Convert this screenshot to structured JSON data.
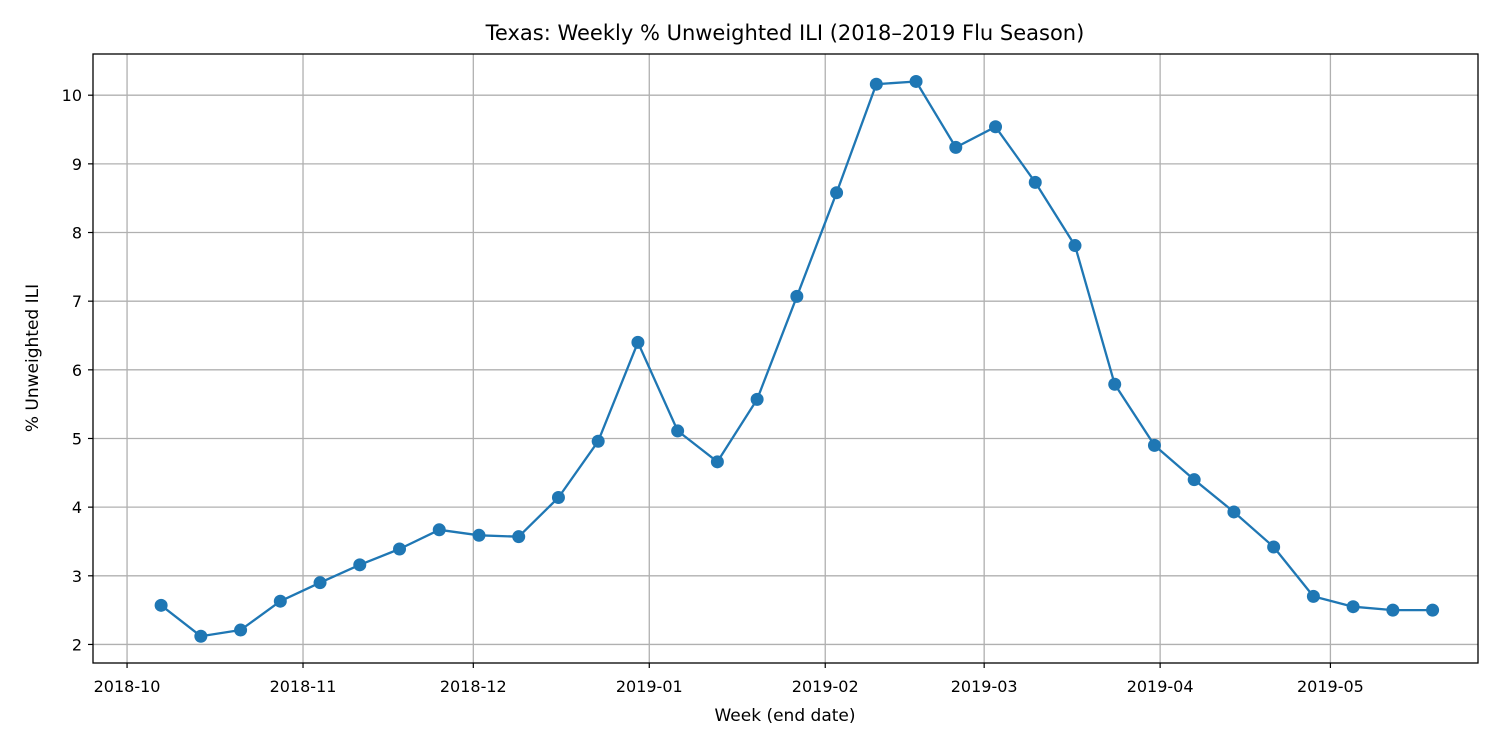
{
  "chart_data": {
    "type": "line",
    "title": "Texas: Weekly % Unweighted ILI (2018–2019 Flu Season)",
    "xlabel": "Week (end date)",
    "ylabel": "% Unweighted ILI",
    "grid": true,
    "color": "#1f77b4",
    "x_ticks": [
      "2018-10",
      "2018-11",
      "2018-12",
      "2019-01",
      "2019-02",
      "2019-03",
      "2019-04",
      "2019-05"
    ],
    "y_ticks": [
      2,
      3,
      4,
      5,
      6,
      7,
      8,
      9,
      10
    ],
    "xlim": [
      "2018-09-25",
      "2019-05-27"
    ],
    "ylim": [
      1.73,
      10.6
    ],
    "x": [
      "2018-10-07",
      "2018-10-14",
      "2018-10-21",
      "2018-10-28",
      "2018-11-04",
      "2018-11-11",
      "2018-11-18",
      "2018-11-25",
      "2018-12-02",
      "2018-12-09",
      "2018-12-16",
      "2018-12-23",
      "2018-12-30",
      "2019-01-06",
      "2019-01-13",
      "2019-01-20",
      "2019-01-27",
      "2019-02-03",
      "2019-02-10",
      "2019-02-17",
      "2019-02-24",
      "2019-03-03",
      "2019-03-10",
      "2019-03-17",
      "2019-03-24",
      "2019-03-31",
      "2019-04-07",
      "2019-04-14",
      "2019-04-21",
      "2019-04-28",
      "2019-05-05",
      "2019-05-12",
      "2019-05-19"
    ],
    "values": [
      2.57,
      2.12,
      2.21,
      2.63,
      2.9,
      3.16,
      3.39,
      3.67,
      3.59,
      3.57,
      4.14,
      4.96,
      6.4,
      5.11,
      4.66,
      5.57,
      7.07,
      8.58,
      10.16,
      10.2,
      9.24,
      9.54,
      8.73,
      7.81,
      5.79,
      4.9,
      4.4,
      3.93,
      3.42,
      2.7,
      2.55,
      2.5,
      2.5
    ]
  }
}
